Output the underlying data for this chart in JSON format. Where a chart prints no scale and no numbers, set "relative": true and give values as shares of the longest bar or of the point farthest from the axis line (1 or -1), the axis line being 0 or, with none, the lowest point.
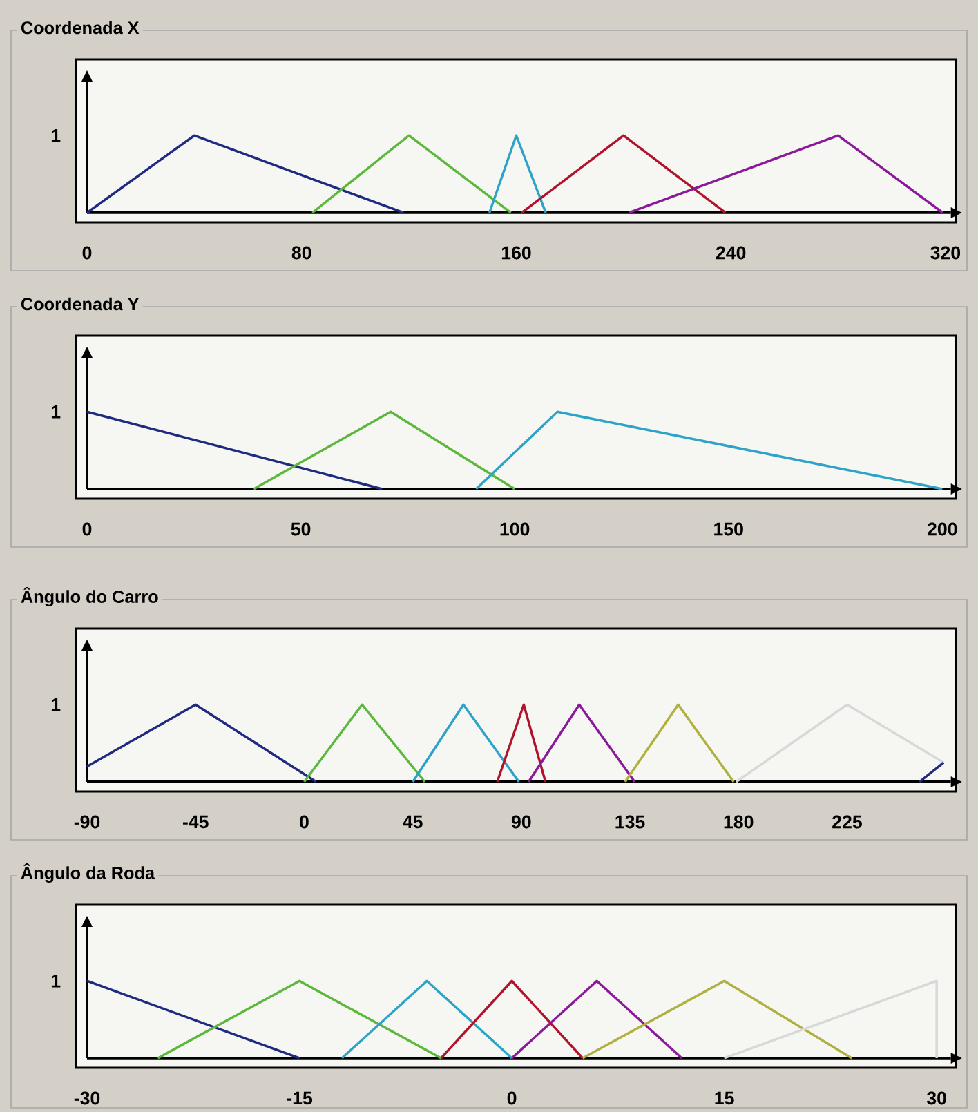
{
  "chart_data": [
    {
      "type": "line",
      "title": "Coordenada X",
      "xlim": [
        0,
        322
      ],
      "xticks": [
        0,
        80,
        160,
        240,
        320
      ],
      "relative": true,
      "annotations": [
        "1"
      ],
      "series": [
        {
          "color": "#1f2a80",
          "x": [
            0,
            40,
            118
          ],
          "values": [
            0,
            1,
            0
          ]
        },
        {
          "color": "#5cb83c",
          "x": [
            84,
            120,
            158
          ],
          "values": [
            0,
            1,
            0
          ]
        },
        {
          "color": "#2ea3c8",
          "x": [
            150,
            160,
            171
          ],
          "values": [
            0,
            1,
            0
          ]
        },
        {
          "color": "#b0142c",
          "x": [
            162,
            200,
            238
          ],
          "values": [
            0,
            1,
            0
          ]
        },
        {
          "color": "#8a1a9a",
          "x": [
            202,
            280,
            319
          ],
          "values": [
            0,
            1,
            0
          ]
        }
      ]
    },
    {
      "type": "line",
      "title": "Coordenada Y",
      "xlim": [
        0,
        202
      ],
      "xticks": [
        0,
        50,
        100,
        150,
        200
      ],
      "relative": true,
      "annotations": [
        "1"
      ],
      "series": [
        {
          "color": "#1f2a80",
          "x": [
            0,
            69
          ],
          "values": [
            1,
            0
          ]
        },
        {
          "color": "#5cb83c",
          "x": [
            39,
            71,
            100
          ],
          "values": [
            0,
            1,
            0
          ]
        },
        {
          "color": "#2ea3c8",
          "x": [
            91,
            110,
            200
          ],
          "values": [
            0,
            1,
            0
          ]
        }
      ]
    },
    {
      "type": "line",
      "title": "Ângulo do Carro",
      "xlim": [
        -90,
        268
      ],
      "xticks": [
        -90,
        -45,
        0,
        45,
        90,
        135,
        180,
        225
      ],
      "relative": true,
      "annotations": [
        "1"
      ],
      "series": [
        {
          "color": "#1f2a80",
          "x": [
            -90,
            -45,
            5
          ],
          "values": [
            0.2,
            1,
            0
          ]
        },
        {
          "color": "#5cb83c",
          "x": [
            0,
            24,
            50
          ],
          "values": [
            0,
            1,
            0
          ]
        },
        {
          "color": "#2ea3c8",
          "x": [
            45,
            66,
            89
          ],
          "values": [
            0,
            1,
            0
          ]
        },
        {
          "color": "#b0142c",
          "x": [
            80,
            91,
            100
          ],
          "values": [
            0,
            1,
            0
          ]
        },
        {
          "color": "#8a1a9a",
          "x": [
            93,
            114,
            137
          ],
          "values": [
            0,
            1,
            0
          ]
        },
        {
          "color": "#b0b040",
          "x": [
            133,
            155,
            178
          ],
          "values": [
            0,
            1,
            0
          ]
        },
        {
          "color": "#d8d8d8",
          "x": [
            179,
            225,
            265
          ],
          "values": [
            0,
            1,
            0.25
          ]
        },
        {
          "color": "#1f2a80",
          "x": [
            255,
            265
          ],
          "values": [
            0,
            0.25
          ]
        }
      ]
    },
    {
      "type": "line",
      "title": "Ângulo da Roda",
      "xlim": [
        -30,
        31
      ],
      "xticks": [
        -30,
        -15,
        0,
        15,
        30
      ],
      "relative": true,
      "annotations": [
        "1"
      ],
      "series": [
        {
          "color": "#1f2a80",
          "x": [
            -30,
            -15
          ],
          "values": [
            1,
            0
          ]
        },
        {
          "color": "#5cb83c",
          "x": [
            -25,
            -15,
            -5
          ],
          "values": [
            0,
            1,
            0
          ]
        },
        {
          "color": "#2ea3c8",
          "x": [
            -12,
            -6,
            0
          ],
          "values": [
            0,
            1,
            0
          ]
        },
        {
          "color": "#b0142c",
          "x": [
            -5,
            0,
            5
          ],
          "values": [
            0,
            1,
            0
          ]
        },
        {
          "color": "#8a1a9a",
          "x": [
            0,
            6,
            12
          ],
          "values": [
            0,
            1,
            0
          ]
        },
        {
          "color": "#b0b040",
          "x": [
            5,
            15,
            24
          ],
          "values": [
            0,
            1,
            0
          ]
        },
        {
          "color": "#d8d8d8",
          "x": [
            15,
            30,
            30
          ],
          "values": [
            0,
            1,
            0
          ]
        }
      ]
    }
  ]
}
